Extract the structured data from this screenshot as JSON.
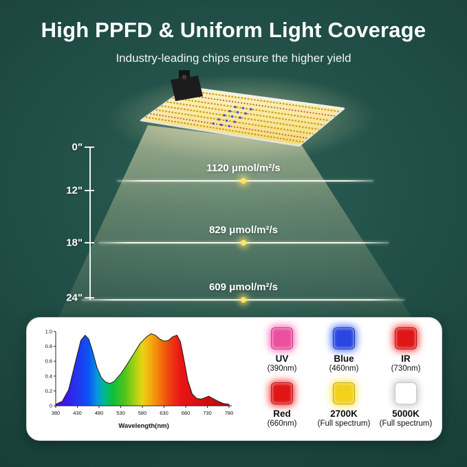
{
  "header": {
    "title": "High PPFD & Uniform Light Coverage",
    "subtitle": "Industry-leading chips ensure the higher yield"
  },
  "ruler": {
    "marks": [
      "0\"",
      "12\"",
      "18\"",
      "24\""
    ]
  },
  "measurements": [
    {
      "label": "1120 μmol/m²/s"
    },
    {
      "label": "829 μmol/m²/s"
    },
    {
      "label": "609 μmol/m²/s"
    }
  ],
  "legend": {
    "items": [
      {
        "name": "UV",
        "detail": "(390nm)",
        "color": "#ec4f9f",
        "glow": "#ff63b8"
      },
      {
        "name": "Blue",
        "detail": "(460nm)",
        "color": "#2a46e0",
        "glow": "#3c6bff"
      },
      {
        "name": "IR",
        "detail": "(730nm)",
        "color": "#e01616",
        "glow": "#ff3030"
      },
      {
        "name": "Red",
        "detail": "(660nm)",
        "color": "#e01616",
        "glow": "#ff3030"
      },
      {
        "name": "2700K",
        "detail": "(Full spectrum)",
        "color": "#f2d11c",
        "glow": "#ffe34a"
      },
      {
        "name": "5000K",
        "detail": "(Full spectrum)",
        "color": "#ffffff",
        "glow": "#c4c4c4"
      }
    ]
  },
  "chart_data": {
    "type": "area",
    "xlabel": "Wavelength(nm)",
    "ylabel": "",
    "xlim": [
      380,
      780
    ],
    "ylim": [
      0,
      1
    ],
    "x_ticks": [
      380,
      430,
      480,
      530,
      580,
      630,
      680,
      730,
      780
    ],
    "y_ticks": [
      "1.0",
      "0.8",
      "0.6",
      "0.4",
      "0.2",
      "0"
    ],
    "x": [
      380,
      395,
      410,
      425,
      438,
      448,
      456,
      465,
      475,
      485,
      495,
      505,
      515,
      530,
      545,
      560,
      575,
      590,
      600,
      610,
      620,
      630,
      640,
      650,
      660,
      668,
      676,
      685,
      695,
      705,
      715,
      725,
      733,
      742,
      755,
      768,
      780
    ],
    "values": [
      0.02,
      0.06,
      0.22,
      0.58,
      0.88,
      0.95,
      0.9,
      0.74,
      0.52,
      0.38,
      0.32,
      0.3,
      0.33,
      0.43,
      0.56,
      0.7,
      0.84,
      0.93,
      0.97,
      0.95,
      0.9,
      0.87,
      0.88,
      0.93,
      0.95,
      0.86,
      0.62,
      0.34,
      0.16,
      0.1,
      0.09,
      0.11,
      0.13,
      0.1,
      0.06,
      0.03,
      0.02
    ]
  }
}
